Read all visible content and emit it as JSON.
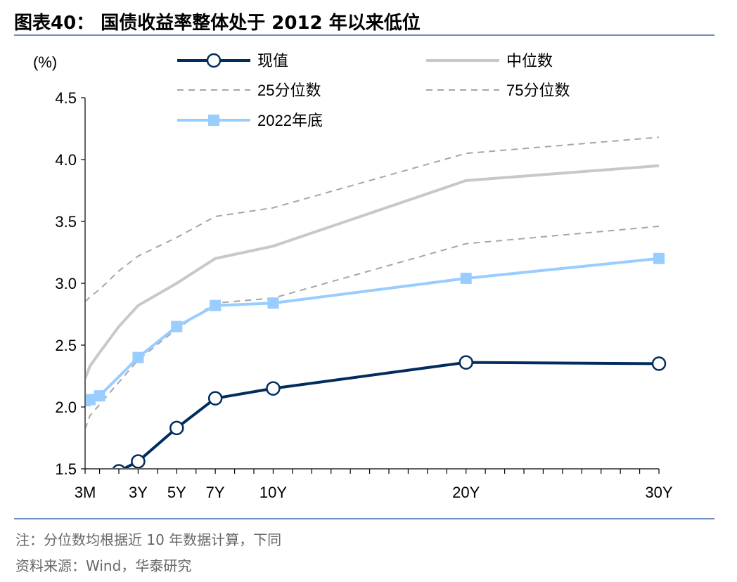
{
  "figure": {
    "title": "图表40： 国债收益率整体处于 2012 年以来低位",
    "note": "注：分位数均根据近 10 年数据计算，下同",
    "source": "资料来源：Wind，华泰研究"
  },
  "colors": {
    "current": "#002d5e",
    "median": "#c8c8c8",
    "p25": "#a6a6a6",
    "p75": "#a6a6a6",
    "end2022": "#99ccff",
    "rule": "#6b8fbe"
  },
  "chart_data": {
    "type": "line",
    "ylabel": "(%)",
    "ylim": [
      1.5,
      4.5
    ],
    "yticks": [
      "1.5",
      "2.0",
      "2.5",
      "3.0",
      "3.5",
      "4.0",
      "4.5"
    ],
    "xlim": [
      0.25,
      30
    ],
    "xticks": [
      0.25,
      1,
      2,
      3,
      4,
      5,
      6,
      7,
      8,
      9,
      10,
      11,
      12,
      13,
      14,
      15,
      16,
      17,
      18,
      19,
      20,
      21,
      22,
      23,
      24,
      25,
      26,
      27,
      28,
      29,
      30
    ],
    "xtick_labels": [
      {
        "x": 0.25,
        "label": "3M"
      },
      {
        "x": 3,
        "label": "3Y"
      },
      {
        "x": 5,
        "label": "5Y"
      },
      {
        "x": 7,
        "label": "7Y"
      },
      {
        "x": 10,
        "label": "10Y"
      },
      {
        "x": 20,
        "label": "20Y"
      },
      {
        "x": 30,
        "label": "30Y"
      }
    ],
    "legend": [
      {
        "key": "current",
        "label": "现值"
      },
      {
        "key": "median",
        "label": "中位数"
      },
      {
        "key": "p25",
        "label": "25分位数"
      },
      {
        "key": "p75",
        "label": "75分位数"
      },
      {
        "key": "end2022",
        "label": "2022年底"
      }
    ],
    "series": [
      {
        "key": "median",
        "name": "中位数",
        "style": "solid",
        "x": [
          0.25,
          0.5,
          1,
          2,
          3,
          5,
          7,
          10,
          20,
          30
        ],
        "y": [
          2.23,
          2.33,
          2.44,
          2.65,
          2.82,
          3.0,
          3.2,
          3.3,
          3.83,
          3.95
        ]
      },
      {
        "key": "p75",
        "name": "75分位数",
        "style": "dashed",
        "x": [
          0.25,
          0.5,
          1,
          2,
          3,
          5,
          7,
          10,
          20,
          30
        ],
        "y": [
          2.85,
          2.89,
          2.95,
          3.1,
          3.22,
          3.37,
          3.54,
          3.61,
          4.05,
          4.18
        ]
      },
      {
        "key": "p25",
        "name": "25分位数",
        "style": "dashed",
        "x": [
          0.25,
          0.5,
          1,
          2,
          3,
          5,
          7,
          10,
          20,
          30
        ],
        "y": [
          1.82,
          1.93,
          2.02,
          2.2,
          2.38,
          2.63,
          2.84,
          2.88,
          3.32,
          3.46
        ]
      },
      {
        "key": "end2022",
        "name": "2022年底",
        "style": "square",
        "x": [
          0.25,
          0.5,
          1,
          3,
          5,
          7,
          10,
          20,
          30
        ],
        "y": [
          2.05,
          2.06,
          2.09,
          2.4,
          2.65,
          2.82,
          2.84,
          3.04,
          3.2
        ]
      },
      {
        "key": "current",
        "name": "现值",
        "style": "circle",
        "x": [
          2,
          3,
          5,
          7,
          10,
          20,
          30
        ],
        "y": [
          1.48,
          1.56,
          1.83,
          2.07,
          2.15,
          2.36,
          2.35
        ]
      }
    ]
  }
}
